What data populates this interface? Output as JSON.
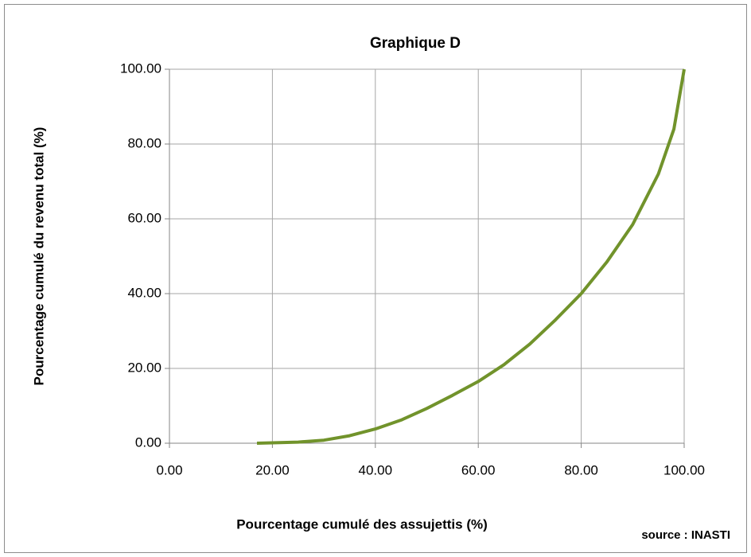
{
  "chart_data": {
    "type": "line",
    "title": "Graphique D",
    "x_label": "Pourcentage cumulé des assujettis (%)",
    "y_label": "Pourcentage cumulé du revenu total (%)",
    "annotation": "source : INASTI",
    "x": [
      17,
      20,
      25,
      30,
      35,
      40,
      45,
      50,
      55,
      60,
      65,
      70,
      75,
      80,
      85,
      90,
      95,
      98,
      100
    ],
    "values": [
      0,
      0.1,
      0.3,
      0.8,
      2,
      3.8,
      6.2,
      9.3,
      12.8,
      16.5,
      21,
      26.5,
      33,
      40,
      48.5,
      58.5,
      72,
      84,
      100
    ],
    "color": "#71932b",
    "xlim": [
      0,
      100
    ],
    "ylim": [
      0,
      100
    ],
    "xticks": [
      {
        "value": 0,
        "label": "0.00"
      },
      {
        "value": 20,
        "label": "20.00"
      },
      {
        "value": 40,
        "label": "40.00"
      },
      {
        "value": 60,
        "label": "60.00"
      },
      {
        "value": 80,
        "label": "80.00"
      },
      {
        "value": 100,
        "label": "100.00"
      }
    ],
    "yticks": [
      {
        "value": 0,
        "label": "0.00"
      },
      {
        "value": 20,
        "label": "20.00"
      },
      {
        "value": 40,
        "label": "40.00"
      },
      {
        "value": 60,
        "label": "60.00"
      },
      {
        "value": 80,
        "label": "80.00"
      },
      {
        "value": 100,
        "label": "100.00"
      }
    ],
    "grid": true
  }
}
